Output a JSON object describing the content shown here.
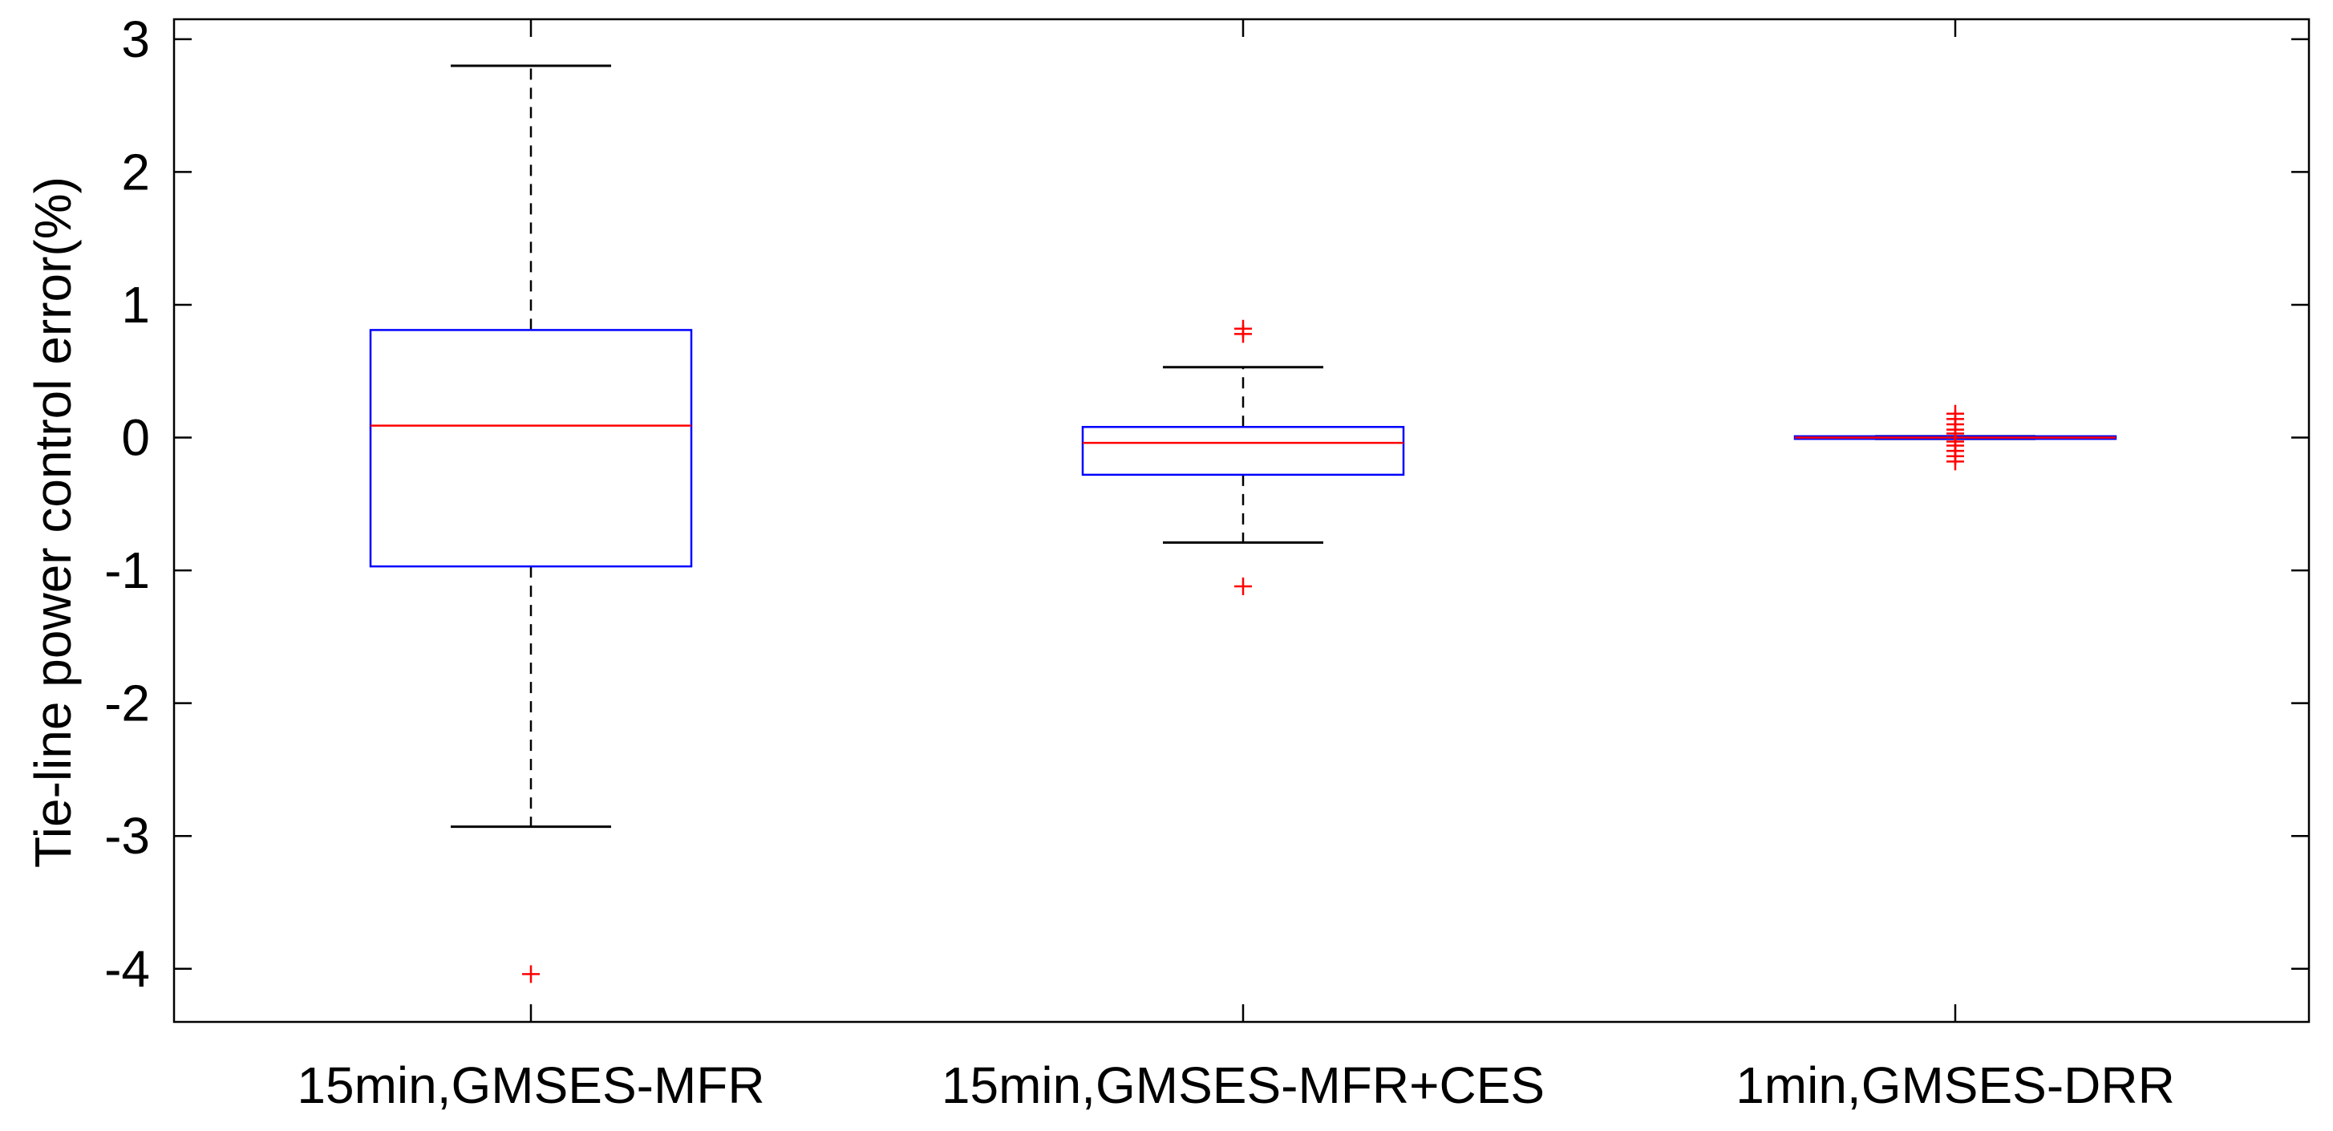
{
  "chart_data": {
    "type": "box",
    "title": "",
    "xlabel": "",
    "ylabel": "Tie-line power control error(%)",
    "ylim": [
      -4.4,
      3.15
    ],
    "yticks": [
      -4,
      -3,
      -2,
      -1,
      0,
      1,
      2,
      3
    ],
    "ytick_labels": [
      "-4",
      "-3",
      "-2",
      "-1",
      "0",
      "1",
      "2",
      "3"
    ],
    "grid": false,
    "categories": [
      "15min,GMSES-MFR",
      "15min,GMSES-MFR+CES",
      "1min,GMSES-DRR"
    ],
    "boxes": [
      {
        "category": "15min,GMSES-MFR",
        "whisker_low": -2.93,
        "q1": -0.97,
        "median": 0.09,
        "q3": 0.81,
        "whisker_high": 2.8,
        "outliers": [
          -4.04
        ]
      },
      {
        "category": "15min,GMSES-MFR+CES",
        "whisker_low": -0.79,
        "q1": -0.28,
        "median": -0.04,
        "q3": 0.08,
        "whisker_high": 0.53,
        "outliers": [
          -1.12,
          0.78,
          0.82
        ]
      },
      {
        "category": "1min,GMSES-DRR",
        "whisker_low": -0.01,
        "q1": -0.01,
        "median": 0.0,
        "q3": 0.01,
        "whisker_high": 0.01,
        "outliers": [
          -0.18,
          -0.14,
          -0.1,
          -0.06,
          -0.03,
          0.03,
          0.06,
          0.1,
          0.14,
          0.18
        ]
      }
    ],
    "colors": {
      "box": "#0000ff",
      "median": "#ff0000",
      "whisker": "#000000",
      "outlier": "#ff0000",
      "axis": "#000000"
    }
  }
}
